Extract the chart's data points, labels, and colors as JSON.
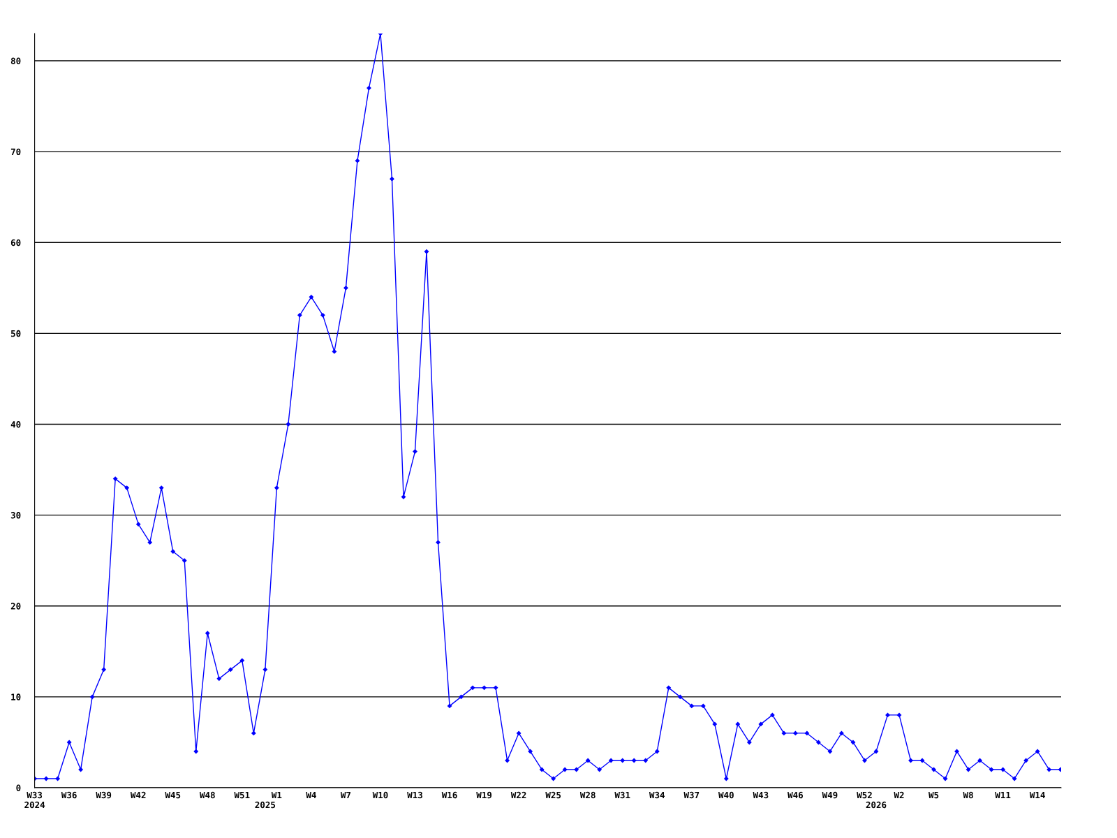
{
  "chart_data": {
    "type": "line",
    "categories": [
      "W33\n2024",
      null,
      null,
      "W36",
      null,
      null,
      "W39",
      null,
      null,
      "W42",
      null,
      null,
      "W45",
      null,
      null,
      "W48",
      null,
      null,
      "W51",
      null,
      "\n2025",
      "W1",
      null,
      null,
      "W4",
      null,
      null,
      "W7",
      null,
      null,
      "W10",
      null,
      null,
      "W13",
      null,
      null,
      "W16",
      null,
      null,
      "W19",
      null,
      null,
      "W22",
      null,
      null,
      "W25",
      null,
      null,
      "W28",
      null,
      null,
      "W31",
      null,
      null,
      "W34",
      null,
      null,
      "W37",
      null,
      null,
      "W40",
      null,
      null,
      "W43",
      null,
      null,
      "W46",
      null,
      null,
      "W49",
      null,
      null,
      "W52",
      "\n2026",
      null,
      "W2",
      null,
      null,
      "W5",
      null,
      null,
      "W8",
      null,
      null,
      "W11",
      null,
      null,
      "W14",
      null,
      null
    ],
    "series": [
      {
        "color": "#0000ff",
        "values": [
          1,
          1,
          1,
          5,
          2,
          10,
          13,
          34,
          33,
          29,
          27,
          33,
          26,
          25,
          4,
          17,
          12,
          13,
          14,
          6,
          13,
          33,
          40,
          52,
          54,
          52,
          48,
          55,
          69,
          77,
          83,
          67,
          32,
          37,
          59,
          27,
          9,
          10,
          11,
          11,
          11,
          3,
          6,
          4,
          2,
          1,
          2,
          2,
          3,
          2,
          3,
          3,
          3,
          3,
          4,
          11,
          10,
          9,
          9,
          7,
          1,
          7,
          5,
          7,
          8,
          6,
          6,
          6,
          5,
          4,
          6,
          5,
          3,
          4,
          8,
          8,
          3,
          3,
          2,
          1,
          4,
          2,
          3,
          2,
          2,
          1,
          3,
          4,
          2,
          2
        ]
      }
    ],
    "ylim": [
      0,
      83
    ],
    "yticks": [
      0,
      10,
      20,
      30,
      40,
      50,
      60,
      70,
      80
    ],
    "grid": "y",
    "marker": "diamond",
    "line_style": "solid"
  }
}
